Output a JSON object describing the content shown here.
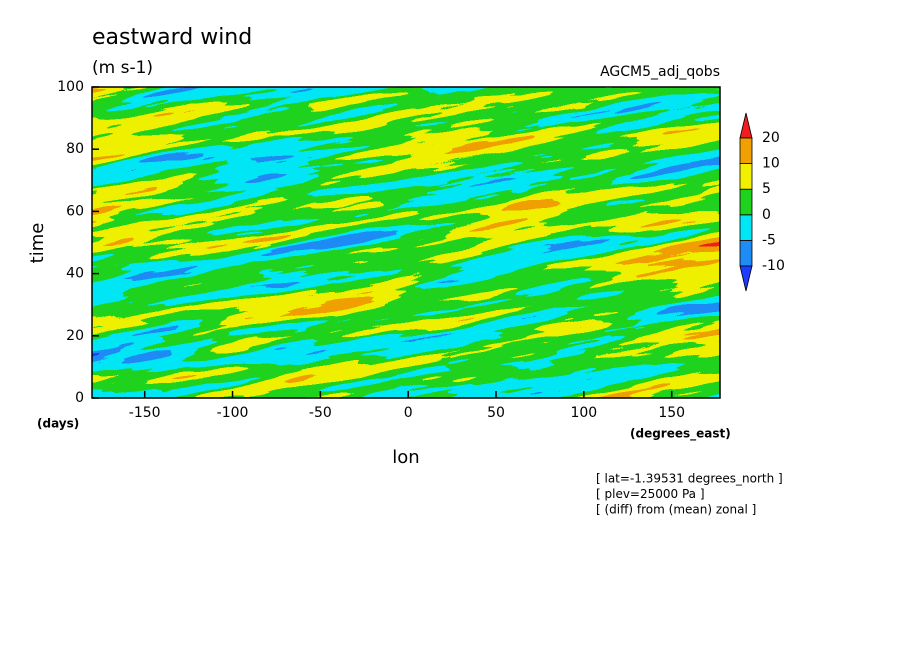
{
  "chart_data": {
    "type": "contour",
    "title": "eastward wind",
    "units": "(m s-1)",
    "subtitle": "AGCM5_adj_qobs",
    "x_label": "lon",
    "y_label": "time",
    "x_units": "(degrees_east)",
    "y_units": "(days)",
    "xlim": [
      -180,
      177.5
    ],
    "ylim": [
      0,
      100
    ],
    "xticks": [
      -150,
      -100,
      -50,
      0,
      50,
      100,
      150
    ],
    "yticks": [
      0,
      20,
      40,
      60,
      80,
      100
    ],
    "levels": [
      -10,
      -5,
      0,
      5,
      10,
      20
    ],
    "colors": [
      "#1e3cff",
      "#1e8cf5",
      "#00e6f5",
      "#1ed21e",
      "#f0f000",
      "#f0a000",
      "#f01e1e"
    ],
    "annotations": [
      "[ lat=-1.39531 degrees_north ]",
      "[ plev=25000 Pa ]",
      "[ (diff) from (mean) zonal ]"
    ]
  }
}
